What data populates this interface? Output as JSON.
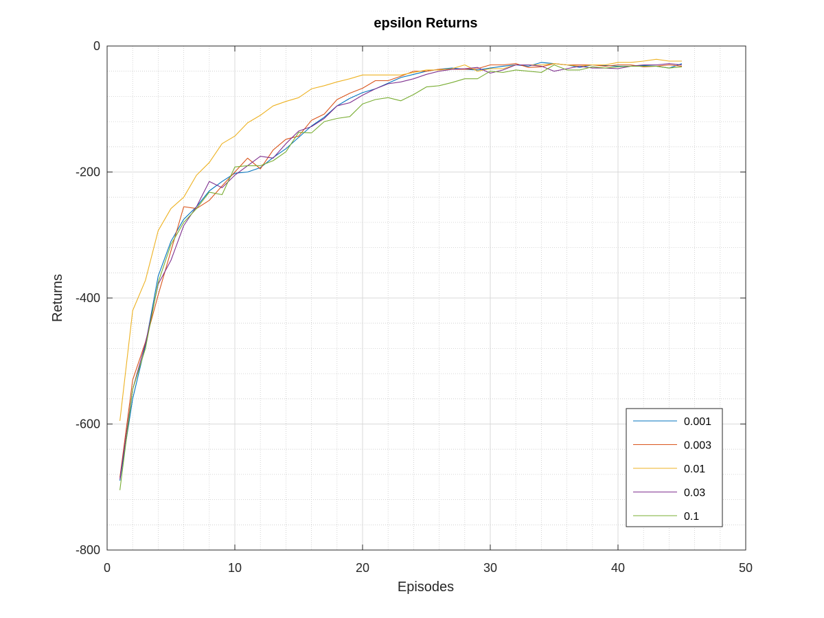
{
  "chart_data": {
    "type": "line",
    "title": "epsilon Returns",
    "xlabel": "Episodes",
    "ylabel": "Returns",
    "xlim": [
      0,
      50
    ],
    "ylim": [
      -800,
      0
    ],
    "xticks": [
      0,
      10,
      20,
      30,
      40,
      50
    ],
    "yticks": [
      -800,
      -600,
      -400,
      -200,
      0
    ],
    "xtick_labels": [
      "0",
      "10",
      "20",
      "30",
      "40",
      "50"
    ],
    "ytick_labels": [
      "-800",
      "-600",
      "-400",
      "-200",
      "0"
    ],
    "grid": true,
    "minor_grid": true,
    "legend_position": "bottom-right",
    "x": [
      1,
      2,
      3,
      4,
      5,
      6,
      7,
      8,
      9,
      10,
      11,
      12,
      13,
      14,
      15,
      16,
      17,
      18,
      19,
      20,
      21,
      22,
      23,
      24,
      25,
      26,
      27,
      28,
      29,
      30,
      31,
      32,
      33,
      34,
      35,
      36,
      37,
      38,
      39,
      40,
      41,
      42,
      43,
      44,
      45
    ],
    "series": [
      {
        "name": "0.001",
        "color": "#0072BD",
        "values": [
          -690,
          -560,
          -475,
          -365,
          -310,
          -275,
          -255,
          -230,
          -215,
          -202,
          -200,
          -193,
          -177,
          -163,
          -145,
          -127,
          -113,
          -95,
          -83,
          -74,
          -68,
          -59,
          -50,
          -45,
          -40,
          -37,
          -35,
          -37,
          -38,
          -35,
          -32,
          -30,
          -32,
          -26,
          -28,
          -30,
          -34,
          -30,
          -31,
          -32,
          -32,
          -31,
          -32,
          -35,
          -28
        ]
      },
      {
        "name": "0.003",
        "color": "#D95319",
        "values": [
          -685,
          -530,
          -470,
          -395,
          -325,
          -255,
          -258,
          -245,
          -222,
          -200,
          -178,
          -195,
          -165,
          -148,
          -143,
          -118,
          -108,
          -85,
          -75,
          -67,
          -55,
          -55,
          -48,
          -40,
          -40,
          -37,
          -37,
          -37,
          -36,
          -30,
          -30,
          -28,
          -34,
          -33,
          -28,
          -30,
          -30,
          -30,
          -32,
          -30,
          -30,
          -33,
          -32,
          -30,
          -32
        ]
      },
      {
        "name": "0.01",
        "color": "#EDB120",
        "values": [
          -595,
          -420,
          -372,
          -293,
          -258,
          -240,
          -205,
          -185,
          -155,
          -143,
          -122,
          -110,
          -95,
          -88,
          -82,
          -68,
          -63,
          -57,
          -52,
          -46,
          -46,
          -46,
          -46,
          -42,
          -38,
          -38,
          -36,
          -30,
          -40,
          -36,
          -36,
          -30,
          -30,
          -30,
          -28,
          -30,
          -32,
          -30,
          -30,
          -26,
          -26,
          -24,
          -21,
          -24,
          -24
        ]
      },
      {
        "name": "0.03",
        "color": "#7E2F8E",
        "values": [
          -688,
          -545,
          -472,
          -378,
          -340,
          -285,
          -255,
          -215,
          -225,
          -205,
          -190,
          -175,
          -178,
          -155,
          -135,
          -128,
          -115,
          -95,
          -90,
          -78,
          -68,
          -60,
          -57,
          -52,
          -45,
          -40,
          -37,
          -36,
          -34,
          -43,
          -38,
          -30,
          -30,
          -32,
          -40,
          -36,
          -32,
          -35,
          -35,
          -36,
          -32,
          -30,
          -30,
          -28,
          -30
        ]
      },
      {
        "name": "0.1",
        "color": "#77AC30",
        "values": [
          -705,
          -545,
          -480,
          -375,
          -315,
          -280,
          -258,
          -232,
          -236,
          -192,
          -190,
          -190,
          -182,
          -168,
          -137,
          -138,
          -120,
          -115,
          -112,
          -92,
          -85,
          -82,
          -87,
          -77,
          -65,
          -63,
          -58,
          -52,
          -52,
          -40,
          -42,
          -38,
          -40,
          -42,
          -30,
          -38,
          -38,
          -33,
          -35,
          -33,
          -32,
          -32,
          -32,
          -35,
          -33
        ]
      }
    ]
  }
}
